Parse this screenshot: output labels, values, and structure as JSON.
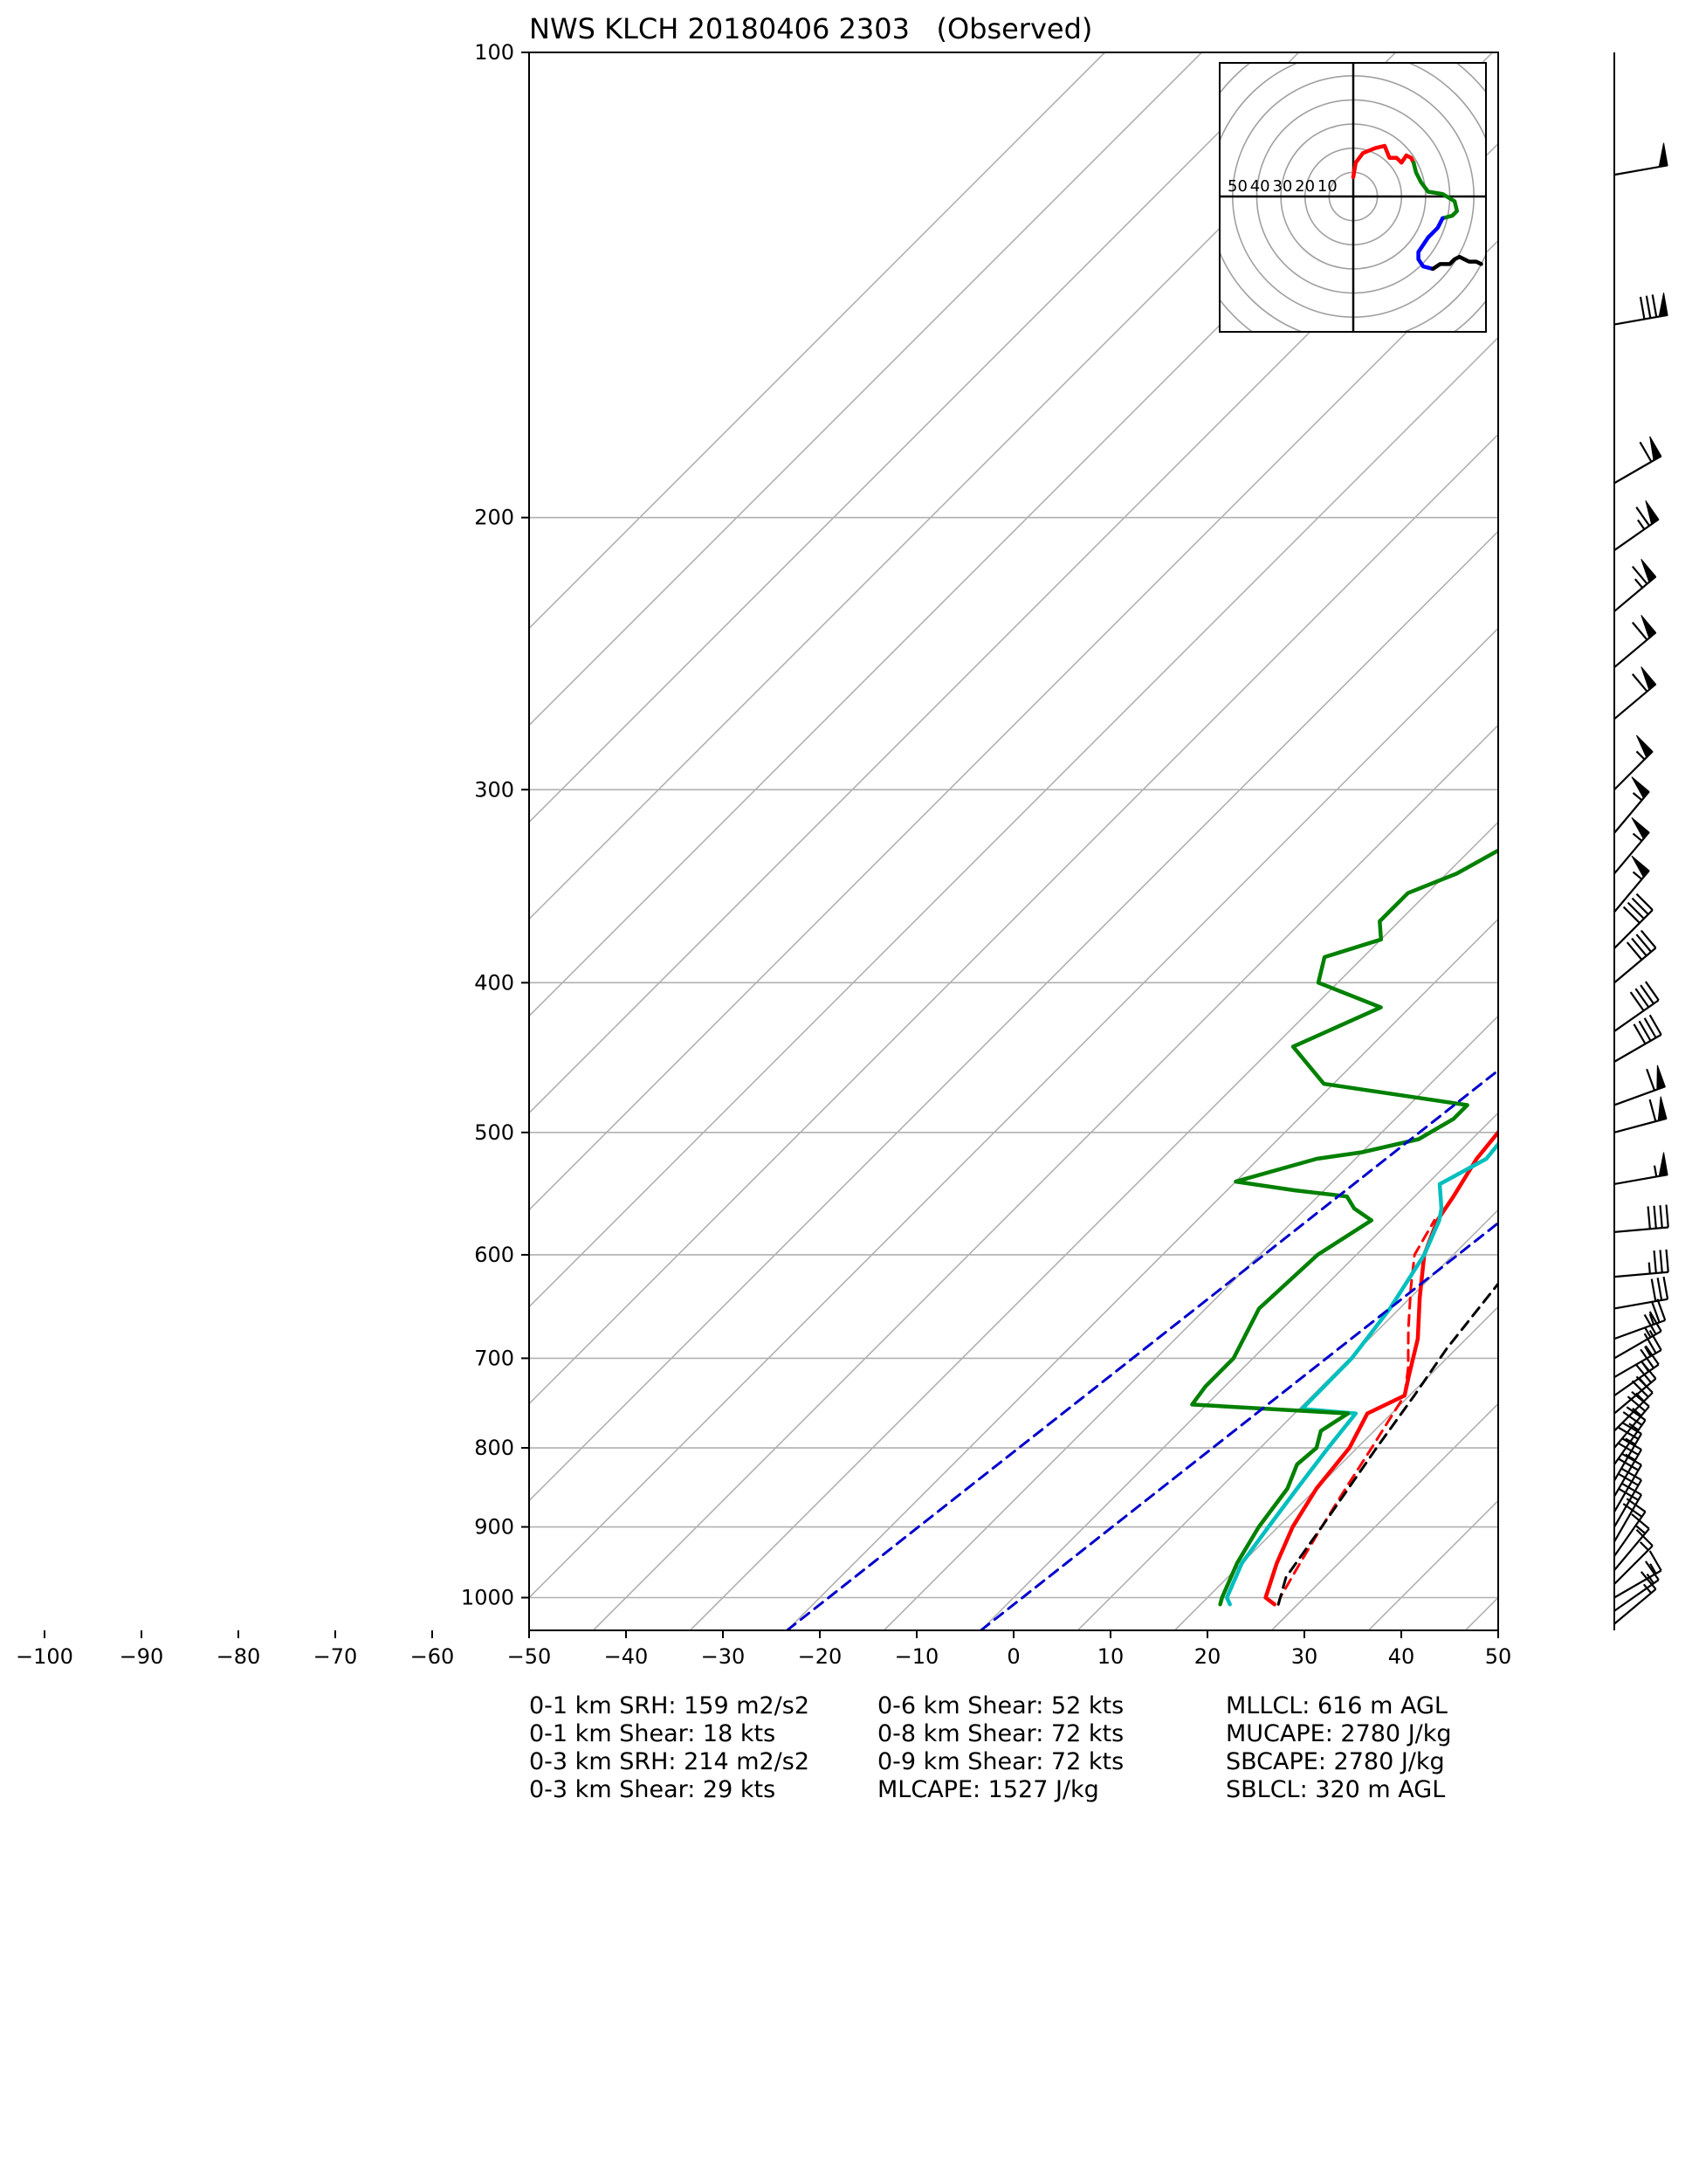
{
  "title": "NWS KLCH 20180406 2303   (Observed)",
  "chart_data": {
    "type": "line",
    "title": "NWS KLCH 20180406 2303   (Observed)",
    "xlabel": "",
    "ylabel": "",
    "xlim": [
      -50,
      50
    ],
    "ylim": [
      1050,
      100
    ],
    "y_scale": "log",
    "grid": true,
    "x_ticks": [
      -100,
      -90,
      -80,
      -70,
      -60,
      -50,
      -40,
      -30,
      -20,
      -10,
      0,
      10,
      20,
      30,
      40,
      50
    ],
    "y_ticks": [
      1000,
      900,
      800,
      700,
      600,
      500,
      400,
      300,
      200,
      100
    ],
    "isotherms": [
      -150,
      -140,
      -130,
      -120,
      -110,
      -100,
      -90,
      -80,
      -70,
      -60,
      -50,
      -40,
      -30,
      -20,
      -10,
      0,
      10,
      20,
      30,
      40,
      50
    ],
    "dashed_isotherms": [
      -20,
      0
    ],
    "series": [
      {
        "name": "",
        "color": "#ff0000",
        "style": "solid",
        "points": [
          [
            27.6,
            1010
          ],
          [
            26,
            1000
          ],
          [
            23.6,
            950
          ],
          [
            21.5,
            900
          ],
          [
            20,
            850
          ],
          [
            19.2,
            800
          ],
          [
            17.5,
            760
          ],
          [
            19.5,
            740
          ],
          [
            18,
            720
          ],
          [
            15,
            680
          ],
          [
            11,
            640
          ],
          [
            7,
            600
          ],
          [
            4.8,
            570
          ],
          [
            4,
            550
          ],
          [
            2.5,
            520
          ],
          [
            2,
            500
          ],
          [
            1.5,
            480
          ],
          [
            0.8,
            460
          ],
          [
            -2,
            430
          ],
          [
            -4,
            400
          ],
          [
            -8,
            370
          ],
          [
            -12,
            340
          ],
          [
            -15,
            310
          ],
          [
            -20,
            280
          ],
          [
            -24,
            250
          ],
          [
            -28.6,
            215
          ],
          [
            -27.6,
            205
          ],
          [
            -29.5,
            200
          ],
          [
            -30,
            190
          ],
          [
            -30.5,
            180
          ],
          [
            -31.5,
            170
          ],
          [
            -30.7,
            160
          ],
          [
            -30.5,
            150
          ],
          [
            -32,
            140
          ],
          [
            -32.7,
            130
          ],
          [
            -33.5,
            120
          ],
          [
            -34.5,
            110
          ],
          [
            -36,
            100
          ]
        ]
      },
      {
        "name": "",
        "color": "#ff0000",
        "style": "dashed",
        "points": [
          [
            28,
            1010
          ],
          [
            27.5,
            1000
          ],
          [
            26,
            950
          ],
          [
            24.5,
            900
          ],
          [
            23,
            850
          ],
          [
            21.5,
            800
          ],
          [
            20.5,
            770
          ],
          [
            19.5,
            740
          ],
          [
            17,
            710
          ],
          [
            13,
            670
          ],
          [
            9,
            630
          ],
          [
            6,
            600
          ],
          [
            4.5,
            570
          ]
        ]
      },
      {
        "name": "",
        "color": "#00bfbf",
        "style": "solid",
        "points": [
          [
            23,
            1010
          ],
          [
            22,
            1000
          ],
          [
            20,
            950
          ],
          [
            19,
            900
          ],
          [
            18,
            850
          ],
          [
            17,
            800
          ],
          [
            16.3,
            760
          ],
          [
            10.3,
            755
          ],
          [
            10.2,
            700
          ],
          [
            9,
            650
          ],
          [
            7,
            600
          ],
          [
            5,
            570
          ],
          [
            4,
            560
          ],
          [
            1.3,
            540
          ],
          [
            3.5,
            520
          ],
          [
            3,
            500
          ],
          [
            1.4,
            480
          ],
          [
            1,
            450
          ],
          [
            0,
            430
          ],
          [
            -4,
            400
          ],
          [
            -7,
            370
          ],
          [
            -12,
            340
          ],
          [
            -16,
            310
          ],
          [
            -20,
            280
          ],
          [
            -24,
            250
          ],
          [
            -28.8,
            215
          ],
          [
            -27.8,
            205
          ],
          [
            -29.7,
            200
          ],
          [
            -30.2,
            190
          ],
          [
            -30.7,
            180
          ],
          [
            -31.7,
            170
          ],
          [
            -30.9,
            160
          ],
          [
            -30.7,
            150
          ],
          [
            -32.2,
            140
          ],
          [
            -32.9,
            130
          ],
          [
            -33.7,
            120
          ],
          [
            -34.7,
            110
          ],
          [
            -36.2,
            100
          ]
        ]
      },
      {
        "name": "",
        "color": "#008000",
        "style": "solid",
        "points": [
          [
            22,
            1010
          ],
          [
            21.5,
            1000
          ],
          [
            19.5,
            950
          ],
          [
            18,
            900
          ],
          [
            17,
            850
          ],
          [
            15.5,
            820
          ],
          [
            15.8,
            800
          ],
          [
            14.5,
            780
          ],
          [
            15.5,
            760
          ],
          [
            -1.5,
            750
          ],
          [
            -2,
            730
          ],
          [
            -2,
            700
          ],
          [
            -4.5,
            650
          ],
          [
            -4,
            600
          ],
          [
            -2,
            570
          ],
          [
            -5,
            560
          ],
          [
            -7,
            550
          ],
          [
            -13,
            545
          ],
          [
            -20,
            538
          ],
          [
            -14,
            520
          ],
          [
            -10,
            515
          ],
          [
            -5.5,
            505
          ],
          [
            -4,
            490
          ],
          [
            -4,
            480
          ],
          [
            -21,
            465
          ],
          [
            -28,
            440
          ],
          [
            -23,
            415
          ],
          [
            -32,
            400
          ],
          [
            -34,
            385
          ],
          [
            -30,
            375
          ],
          [
            -32,
            365
          ],
          [
            -32,
            350
          ],
          [
            -29,
            340
          ],
          [
            -26.5,
            325
          ],
          [
            -28,
            310
          ],
          [
            -25,
            290
          ],
          [
            -22,
            270
          ],
          [
            -25,
            255
          ],
          [
            -24,
            240
          ],
          [
            -28,
            220
          ],
          [
            -36,
            205
          ],
          [
            -34,
            200
          ],
          [
            -33,
            190
          ],
          [
            -31.5,
            170
          ],
          [
            -34,
            160
          ],
          [
            -33,
            150
          ],
          [
            -37,
            140
          ],
          [
            -39,
            130
          ],
          [
            -41,
            120
          ],
          [
            -45,
            110
          ],
          [
            -47,
            100
          ]
        ]
      },
      {
        "name": "",
        "color": "#000000",
        "style": "dashed",
        "points": [
          [
            28,
            1010
          ],
          [
            26,
            970
          ],
          [
            24.5,
            900
          ],
          [
            22,
            800
          ],
          [
            20.5,
            740
          ],
          [
            19,
            690
          ],
          [
            17,
            600
          ],
          [
            13,
            530
          ],
          [
            9,
            470
          ],
          [
            5,
            420
          ],
          [
            0,
            370
          ],
          [
            -6,
            320
          ],
          [
            -14,
            270
          ],
          [
            -23,
            220
          ],
          [
            -33,
            170
          ],
          [
            -41,
            130
          ],
          [
            -47,
            100
          ]
        ]
      },
      {
        "name": "",
        "color": "#0000cd",
        "style": "dashed",
        "points": [
          [
            -20,
            1050
          ],
          [
            24,
            100
          ]
        ]
      },
      {
        "name": "",
        "color": "#0000cd",
        "style": "dashed",
        "points": [
          [
            0,
            1050
          ],
          [
            44,
            100
          ]
        ]
      }
    ],
    "wind_barbs": [
      {
        "p": 1040,
        "dir": 230,
        "speed": 15
      },
      {
        "p": 1020,
        "dir": 235,
        "speed": 15
      },
      {
        "p": 1000,
        "dir": 240,
        "speed": 15
      },
      {
        "p": 980,
        "dir": 225,
        "speed": 15
      },
      {
        "p": 960,
        "dir": 220,
        "speed": 15
      },
      {
        "p": 940,
        "dir": 215,
        "speed": 20
      },
      {
        "p": 920,
        "dir": 210,
        "speed": 20
      },
      {
        "p": 900,
        "dir": 210,
        "speed": 20
      },
      {
        "p": 880,
        "dir": 210,
        "speed": 20
      },
      {
        "p": 860,
        "dir": 210,
        "speed": 25
      },
      {
        "p": 840,
        "dir": 210,
        "speed": 25
      },
      {
        "p": 820,
        "dir": 215,
        "speed": 25
      },
      {
        "p": 800,
        "dir": 220,
        "speed": 25
      },
      {
        "p": 780,
        "dir": 225,
        "speed": 25
      },
      {
        "p": 760,
        "dir": 230,
        "speed": 25
      },
      {
        "p": 740,
        "dir": 235,
        "speed": 25
      },
      {
        "p": 720,
        "dir": 240,
        "speed": 25
      },
      {
        "p": 700,
        "dir": 240,
        "speed": 25
      },
      {
        "p": 680,
        "dir": 250,
        "speed": 25
      },
      {
        "p": 650,
        "dir": 260,
        "speed": 30
      },
      {
        "p": 620,
        "dir": 265,
        "speed": 35
      },
      {
        "p": 580,
        "dir": 265,
        "speed": 40
      },
      {
        "p": 540,
        "dir": 260,
        "speed": 55
      },
      {
        "p": 500,
        "dir": 255,
        "speed": 60
      },
      {
        "p": 480,
        "dir": 250,
        "speed": 60
      },
      {
        "p": 450,
        "dir": 240,
        "speed": 40
      },
      {
        "p": 430,
        "dir": 235,
        "speed": 40
      },
      {
        "p": 400,
        "dir": 230,
        "speed": 40
      },
      {
        "p": 380,
        "dir": 225,
        "speed": 40
      },
      {
        "p": 360,
        "dir": 220,
        "speed": 55
      },
      {
        "p": 340,
        "dir": 220,
        "speed": 55
      },
      {
        "p": 320,
        "dir": 220,
        "speed": 55
      },
      {
        "p": 300,
        "dir": 225,
        "speed": 55
      },
      {
        "p": 270,
        "dir": 230,
        "speed": 60
      },
      {
        "p": 250,
        "dir": 230,
        "speed": 60
      },
      {
        "p": 230,
        "dir": 230,
        "speed": 65
      },
      {
        "p": 210,
        "dir": 235,
        "speed": 65
      },
      {
        "p": 190,
        "dir": 240,
        "speed": 60
      },
      {
        "p": 150,
        "dir": 260,
        "speed": 80
      },
      {
        "p": 120,
        "dir": 260,
        "speed": 50
      }
    ],
    "hodograph": {
      "ring_labels": [
        "10",
        "20",
        "30",
        "40",
        "50"
      ],
      "rings": [
        10,
        20,
        30,
        40,
        50,
        60,
        70,
        80
      ],
      "traces": [
        {
          "color": "#ff0000",
          "points": [
            [
              0,
              8
            ],
            [
              1,
              14
            ],
            [
              4,
              18
            ],
            [
              9,
              20
            ],
            [
              13,
              21
            ],
            [
              15,
              16
            ],
            [
              18,
              16
            ],
            [
              20,
              14
            ],
            [
              22,
              17
            ],
            [
              24,
              16
            ],
            [
              25,
              14
            ]
          ]
        },
        {
          "color": "#008000",
          "points": [
            [
              25,
              14
            ],
            [
              26,
              10
            ],
            [
              28,
              6
            ],
            [
              31,
              2
            ],
            [
              37,
              1
            ],
            [
              42,
              -2
            ],
            [
              43,
              -6
            ],
            [
              41,
              -8
            ],
            [
              37,
              -9
            ]
          ]
        },
        {
          "color": "#0000ff",
          "points": [
            [
              37,
              -9
            ],
            [
              35,
              -13
            ],
            [
              31,
              -17
            ],
            [
              27,
              -23
            ],
            [
              27,
              -26
            ],
            [
              29,
              -29
            ],
            [
              33,
              -30
            ]
          ]
        },
        {
          "color": "#000000",
          "points": [
            [
              33,
              -30
            ],
            [
              36,
              -28
            ],
            [
              40,
              -28
            ],
            [
              42,
              -26
            ],
            [
              44,
              -25
            ],
            [
              46,
              -26
            ],
            [
              48,
              -27
            ],
            [
              51,
              -27
            ],
            [
              53,
              -28
            ]
          ]
        }
      ]
    },
    "annotations": [
      "0-1 km SRH: 159 m2/s2",
      "0-1 km Shear: 18 kts",
      "0-3 km SRH: 214 m2/s2",
      "0-3 km Shear: 29 kts",
      "0-6 km Shear: 52 kts",
      "0-8 km Shear: 72 kts",
      "0-9 km Shear: 72 kts",
      "MLCAPE: 1527 J/kg",
      "MLLCL: 616 m AGL",
      "MUCAPE: 2780 J/kg",
      "SBCAPE: 2780 J/kg",
      "SBLCL: 320 m AGL"
    ]
  }
}
